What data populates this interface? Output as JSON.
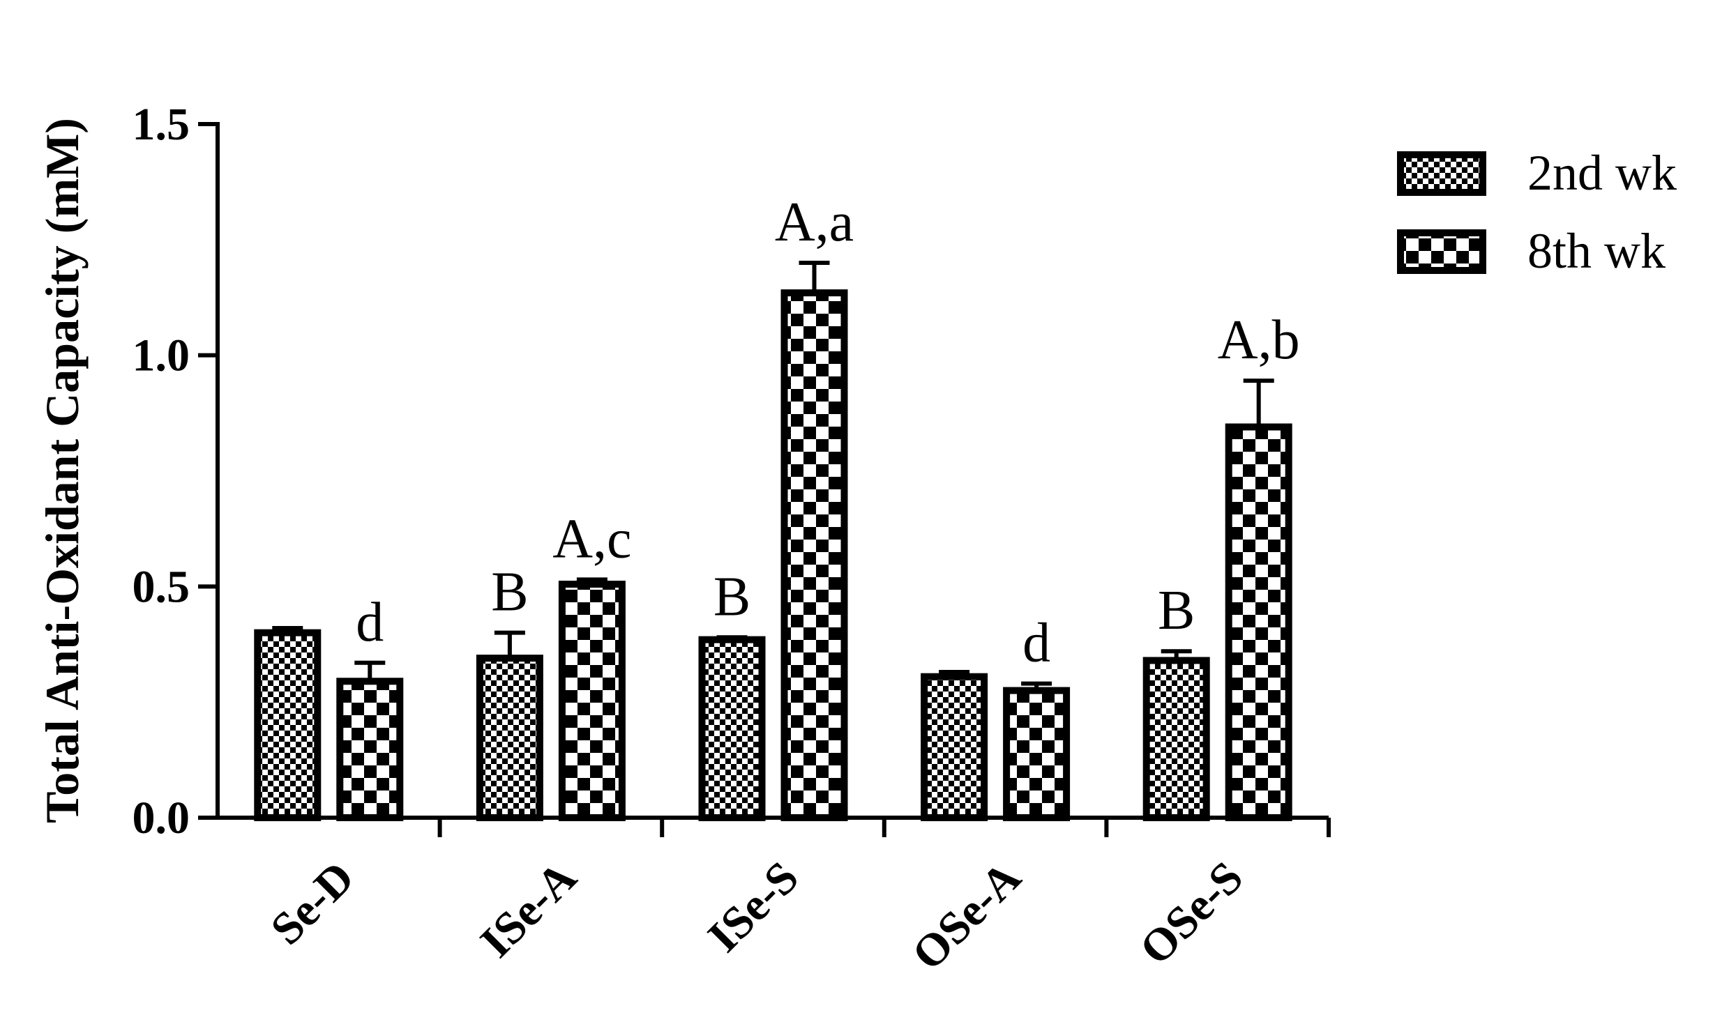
{
  "chart_data": {
    "type": "bar",
    "ylabel": "Total Anti-Oxidant Capacity (mM)",
    "xlabel": "",
    "ylim": [
      0,
      1.5
    ],
    "yticks": [
      "0.0",
      "0.5",
      "1.0",
      "1.5"
    ],
    "categories": [
      "Se-D",
      "ISe-A",
      "ISe-S",
      "OSe-A",
      "OSe-S"
    ],
    "legend_position": "top-right",
    "grid": false,
    "series": [
      {
        "name": "2nd wk",
        "pattern": "fine-checker",
        "values": [
          0.4,
          0.345,
          0.385,
          0.305,
          0.34
        ],
        "errors": [
          0.01,
          0.055,
          0.005,
          0.01,
          0.02
        ],
        "labels": [
          "",
          "B",
          "B",
          "",
          "B"
        ]
      },
      {
        "name": "8th wk",
        "pattern": "coarse-checker",
        "values": [
          0.295,
          0.505,
          1.135,
          0.275,
          0.845
        ],
        "errors": [
          0.04,
          0.01,
          0.065,
          0.015,
          0.1
        ],
        "labels": [
          "d",
          "A,c",
          "A,a",
          "d",
          "A,b"
        ]
      }
    ]
  }
}
